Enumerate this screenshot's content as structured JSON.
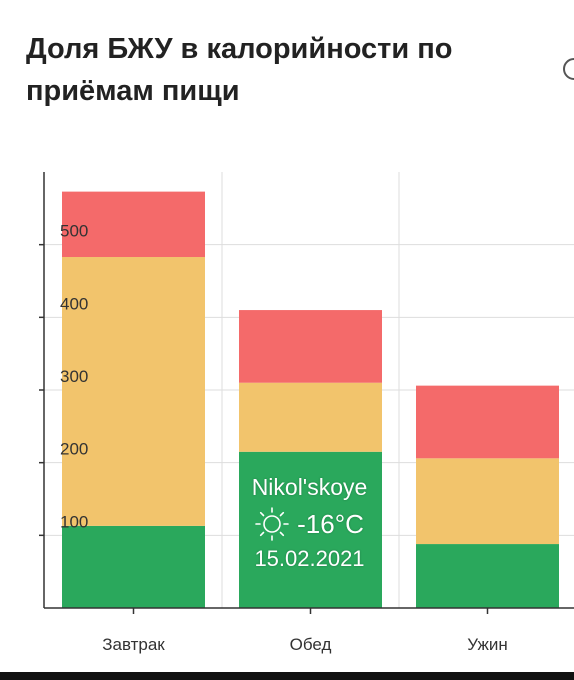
{
  "title": "Доля БЖУ в калорийности по приёмам пищи",
  "chart_data": {
    "type": "bar",
    "stacked": true,
    "categories": [
      "Завтрак",
      "Обед",
      "Ужин"
    ],
    "series": [
      {
        "color": "#2aa85c",
        "values": [
          113,
          215,
          88
        ]
      },
      {
        "color": "#f2c46c",
        "values": [
          370,
          95,
          118
        ]
      },
      {
        "color": "#f46a6a",
        "values": [
          90,
          100,
          100
        ]
      }
    ],
    "yticks": [
      100,
      200,
      300,
      400,
      500
    ],
    "ylim": [
      0,
      600
    ],
    "grid": true,
    "legend": "none"
  },
  "weather_overlay": {
    "city": "Nikol'skoye",
    "icon": "sun-icon",
    "temperature": "-16°C",
    "date": "15.02.2021"
  }
}
